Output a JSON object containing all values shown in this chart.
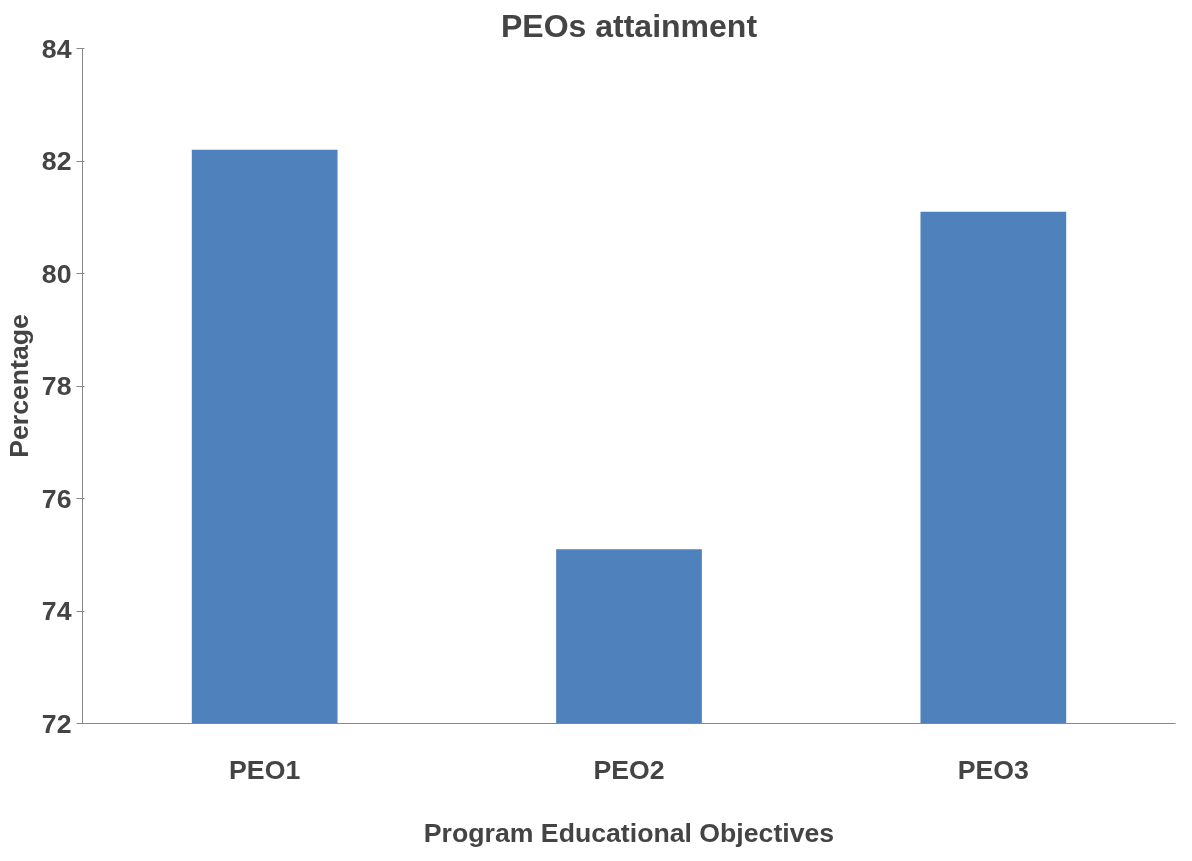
{
  "chart_data": {
    "type": "bar",
    "title": "PEOs attainment",
    "xlabel": "Program Educational Objectives",
    "ylabel": "Percentage",
    "categories": [
      "PEO1",
      "PEO2",
      "PEO3"
    ],
    "values": [
      82.2,
      75.1,
      81.1
    ],
    "color": "#4f81bd",
    "ylim": [
      72,
      84
    ],
    "yticks": [
      72,
      74,
      76,
      78,
      80,
      82,
      84
    ],
    "grid": false
  }
}
